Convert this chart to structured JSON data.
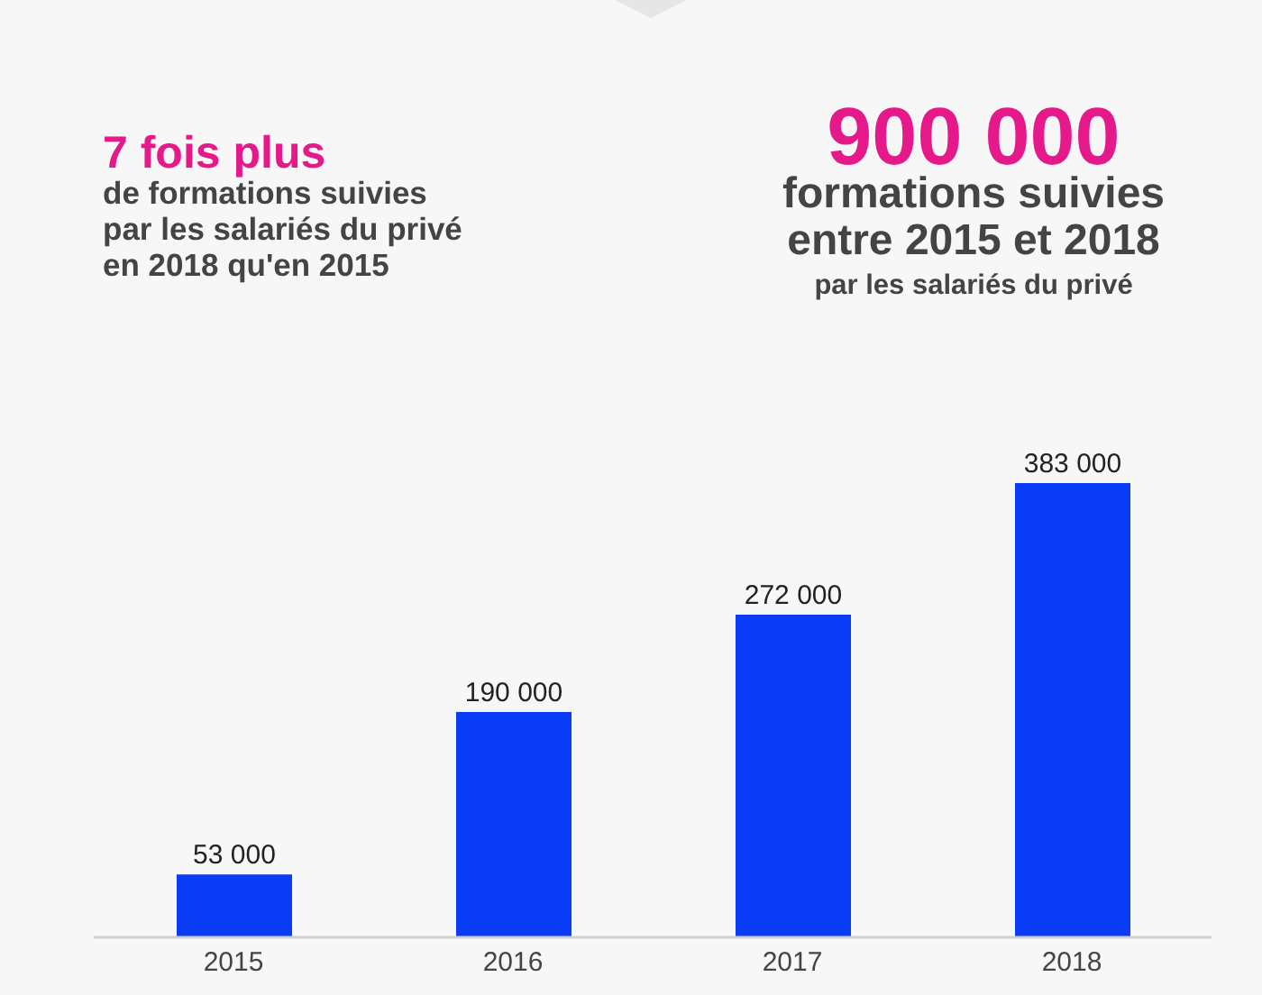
{
  "chart_data": {
    "type": "bar",
    "annotations": [
      "7 fois plus",
      "de formations suivies\npar les salariés du privé\nen 2018 qu'en 2015",
      "900 000",
      "formations suivies\nentre 2015 et 2018",
      "par les salariés du privé"
    ],
    "categories": [
      "2015",
      "2016",
      "2017",
      "2018"
    ],
    "values": [
      53000,
      190000,
      272000,
      383000
    ],
    "value_labels": [
      "53 000",
      "190 000",
      "272 000",
      "383 000"
    ],
    "color": "#0a3cf5"
  }
}
